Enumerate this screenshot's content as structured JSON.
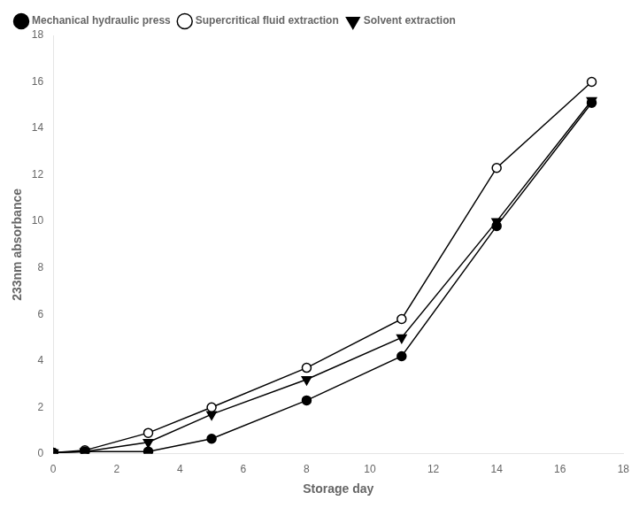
{
  "chart_data": {
    "type": "line",
    "x": [
      0,
      1,
      3,
      5,
      8,
      11,
      14,
      17
    ],
    "series": [
      {
        "name": "Mechanical hydraulic press",
        "color": "#000000",
        "marker": "circle",
        "values": [
          0.05,
          0.1,
          0.1,
          0.65,
          2.3,
          4.2,
          9.8,
          15.1
        ]
      },
      {
        "name": "Supercritical fluid extraction",
        "color": "#000000",
        "marker": "open_circle",
        "values": [
          0.05,
          0.15,
          0.9,
          2.0,
          3.7,
          5.8,
          12.3,
          16.0
        ]
      },
      {
        "name": "Solvent extraction",
        "color": "#000000",
        "marker": "triangle_down",
        "values": [
          0.05,
          0.1,
          0.5,
          1.7,
          3.2,
          5.0,
          10.0,
          15.2
        ]
      }
    ],
    "xlabel": "Storage day",
    "ylabel": "233nm absorbance",
    "xlim": [
      0,
      18
    ],
    "ylim": [
      0,
      18
    ],
    "xticks": [
      0,
      2,
      4,
      6,
      8,
      10,
      12,
      14,
      16,
      18
    ],
    "yticks": [
      0,
      2,
      4,
      6,
      8,
      10,
      12,
      14,
      16,
      18
    ],
    "grid": false,
    "legend": "upper left"
  }
}
